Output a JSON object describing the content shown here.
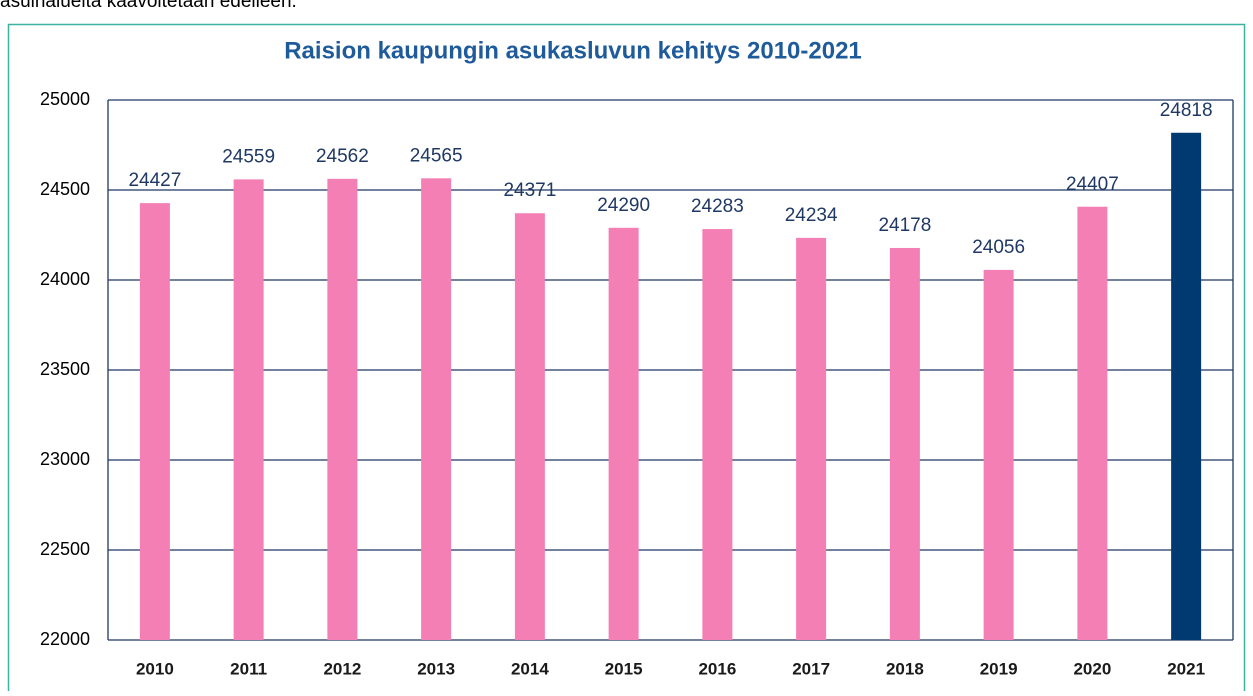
{
  "text": "asuinalueita kaavoitetaan edelleen.",
  "chart_data": {
    "type": "bar",
    "title": "Raision kaupungin asukasluvun kehitys 2010-2021",
    "categories": [
      "2010",
      "2011",
      "2012",
      "2013",
      "2014",
      "2015",
      "2016",
      "2017",
      "2018",
      "2019",
      "2020",
      "2021"
    ],
    "values": [
      24427,
      24559,
      24562,
      24565,
      24371,
      24290,
      24283,
      24234,
      24178,
      24056,
      24407,
      24818
    ],
    "colors": [
      "#f47fb5",
      "#f47fb5",
      "#f47fb5",
      "#f47fb5",
      "#f47fb5",
      "#f47fb5",
      "#f47fb5",
      "#f47fb5",
      "#f47fb5",
      "#f47fb5",
      "#f47fb5",
      "#003a70"
    ],
    "ylim": [
      22000,
      25000
    ],
    "yticks": [
      22000,
      22500,
      23000,
      23500,
      24000,
      24500,
      25000
    ],
    "grid": true
  }
}
